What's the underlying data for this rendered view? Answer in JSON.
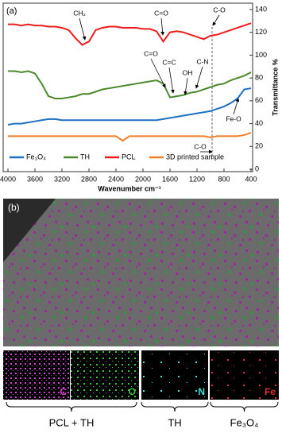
{
  "chart_data": {
    "type": "line",
    "panel_label": "(a)",
    "x": [
      4000,
      3900,
      3800,
      3700,
      3600,
      3500,
      3400,
      3300,
      3200,
      3100,
      3000,
      2900,
      2800,
      2700,
      2600,
      2500,
      2400,
      2300,
      2200,
      2100,
      2000,
      1900,
      1800,
      1700,
      1600,
      1500,
      1400,
      1300,
      1200,
      1100,
      1000,
      900,
      800,
      700,
      600,
      500,
      400
    ],
    "series": [
      {
        "name": "Fe₃O₄",
        "color": "#1f6fc5",
        "values": [
          39,
          40,
          40,
          41,
          42,
          43,
          44,
          44,
          43,
          43,
          43,
          43,
          43,
          43,
          43,
          43,
          43,
          43,
          43,
          43,
          43,
          43,
          43,
          44,
          45,
          46,
          47,
          48,
          49,
          50,
          51,
          53,
          55,
          58,
          62,
          70,
          71
        ]
      },
      {
        "name": "TH",
        "color": "#4a8a2a",
        "values": [
          86,
          86,
          85,
          86,
          84,
          75,
          64,
          62,
          62,
          63,
          64,
          66,
          66,
          68,
          70,
          71,
          72,
          73,
          74,
          75,
          76,
          77,
          78,
          75,
          63,
          64,
          65,
          67,
          68,
          70,
          72,
          74,
          75,
          78,
          80,
          82,
          85
        ]
      },
      {
        "name": "PCL",
        "color": "#ee1c1c",
        "values": [
          127,
          127,
          126,
          127,
          126,
          126,
          125,
          125,
          124,
          122,
          115,
          109,
          112,
          122,
          124,
          125,
          125,
          124,
          124,
          124,
          123,
          123,
          121,
          112,
          120,
          121,
          120,
          118,
          116,
          114,
          117,
          118,
          120,
          122,
          124,
          126,
          128
        ]
      },
      {
        "name": "3D printed sample",
        "color": "#f07f2a",
        "values": [
          29,
          29,
          29,
          29,
          29,
          29,
          29,
          29,
          29,
          29,
          29,
          29,
          29,
          29,
          29,
          29,
          29,
          25,
          29,
          29,
          29,
          29,
          29,
          29,
          29,
          29,
          29,
          29,
          29,
          29,
          28,
          29,
          29,
          29,
          29,
          30,
          32
        ]
      }
    ],
    "xlabel": "Wavenumber cm⁻¹",
    "ylabel": "Transmittance %",
    "xlim": [
      4000,
      400
    ],
    "xticks": [
      4000,
      3600,
      3200,
      2800,
      2400,
      2000,
      1600,
      1200,
      800,
      400
    ],
    "ylim": [
      0,
      140
    ],
    "yticks": [
      0,
      20,
      40,
      60,
      80,
      100,
      120,
      140
    ],
    "annotations": [
      "CH₂",
      "C=O",
      "C-O",
      "C=O",
      "C=C",
      "OH",
      "C-N",
      "Fe-O",
      "C-O"
    ]
  },
  "panel_b": {
    "label": "(b)",
    "maps": [
      "C",
      "O",
      "N",
      "Fe"
    ],
    "groups": [
      "PCL + TH",
      "TH",
      "Fe₃O₄"
    ]
  }
}
